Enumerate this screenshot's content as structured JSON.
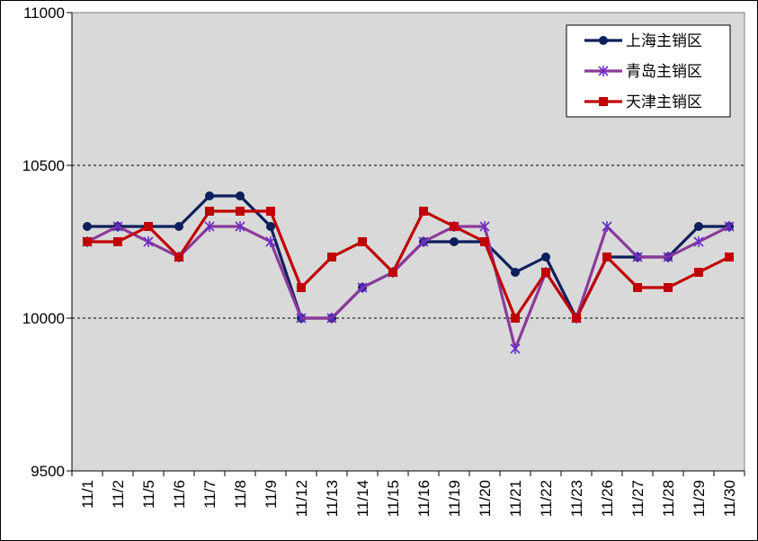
{
  "chart_data": {
    "type": "line",
    "title": "",
    "xlabel": "",
    "ylabel": "",
    "ylim": [
      9500,
      11000
    ],
    "yticks": [
      "11000",
      "10500",
      "10000",
      "9500"
    ],
    "grid": "horizontal dashed",
    "legend_position": "top-right",
    "categories": [
      "11/1",
      "11/2",
      "11/5",
      "11/6",
      "11/7",
      "11/8",
      "11/9",
      "11/12",
      "11/13",
      "11/14",
      "11/15",
      "11/16",
      "11/19",
      "11/20",
      "11/21",
      "11/22",
      "11/23",
      "11/26",
      "11/27",
      "11/28",
      "11/29",
      "11/30"
    ],
    "series": [
      {
        "name": "上海主销区",
        "color": "#0d1f5c",
        "marker": "circle",
        "values": [
          10300,
          10300,
          10300,
          10300,
          10400,
          10400,
          10300,
          10000,
          10000,
          10100,
          10150,
          10250,
          10250,
          10250,
          10150,
          10200,
          10000,
          10200,
          10200,
          10200,
          10300,
          10300
        ]
      },
      {
        "name": "青岛主销区",
        "color": "#8b3a9a",
        "marker": "star",
        "values": [
          10250,
          10300,
          10250,
          10200,
          10300,
          10300,
          10250,
          10000,
          10000,
          10100,
          10150,
          10250,
          10300,
          10300,
          9900,
          10150,
          10000,
          10300,
          10200,
          10200,
          10250,
          10300
        ]
      },
      {
        "name": "天津主销区",
        "color": "#c00000",
        "marker": "square",
        "values": [
          10250,
          10250,
          10300,
          10200,
          10350,
          10350,
          10350,
          10100,
          10200,
          10250,
          10150,
          10350,
          10300,
          10250,
          10000,
          10150,
          10000,
          10200,
          10100,
          10100,
          10150,
          10200
        ]
      }
    ]
  }
}
